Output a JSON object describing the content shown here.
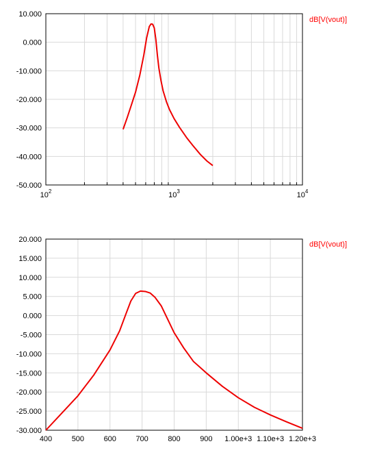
{
  "chart_data": [
    {
      "type": "line",
      "x_scale": "log",
      "xlim": [
        100,
        10000
      ],
      "ylim": [
        -50,
        10
      ],
      "x_ticks": [
        {
          "value": 100,
          "base": "10",
          "exp": "2"
        },
        {
          "value": 1000,
          "base": "10",
          "exp": "3"
        },
        {
          "value": 10000,
          "base": "10",
          "exp": "4"
        }
      ],
      "y_ticks": [
        {
          "value": 10,
          "label": "10.000"
        },
        {
          "value": 0,
          "label": "0.000"
        },
        {
          "value": -10,
          "label": "-10.000"
        },
        {
          "value": -20,
          "label": "-20.000"
        },
        {
          "value": -30,
          "label": "-30.000"
        },
        {
          "value": -40,
          "label": "-40.000"
        },
        {
          "value": -50,
          "label": "-50.000"
        }
      ],
      "grid": true,
      "color": "#ee0000",
      "series": [
        {
          "name": "dB[V(vout)]",
          "x": [
            400,
            430,
            460,
            500,
            540,
            580,
            610,
            640,
            660,
            680,
            700,
            720,
            740,
            760,
            790,
            820,
            870,
            920,
            1000,
            1100,
            1250,
            1400,
            1600,
            1800,
            2000
          ],
          "y": [
            -30.5,
            -26.5,
            -22.5,
            -17.5,
            -11.5,
            -4.5,
            1.5,
            5.5,
            6.4,
            6.3,
            5.0,
            1.0,
            -4.5,
            -9.0,
            -13.5,
            -17.0,
            -20.8,
            -23.6,
            -26.8,
            -29.8,
            -33.4,
            -36.2,
            -39.3,
            -41.6,
            -43.2
          ]
        }
      ]
    },
    {
      "type": "line",
      "x_scale": "linear",
      "xlim": [
        400,
        1200
      ],
      "ylim": [
        -30,
        20
      ],
      "x_ticks": [
        {
          "value": 400,
          "label": "400"
        },
        {
          "value": 500,
          "label": "500"
        },
        {
          "value": 600,
          "label": "600"
        },
        {
          "value": 700,
          "label": "700"
        },
        {
          "value": 800,
          "label": "800"
        },
        {
          "value": 900,
          "label": "900"
        },
        {
          "value": 1000,
          "label": "1.00e+3"
        },
        {
          "value": 1100,
          "label": "1.10e+3"
        },
        {
          "value": 1200,
          "label": "1.20e+3"
        }
      ],
      "y_ticks": [
        {
          "value": 20,
          "label": "20.000"
        },
        {
          "value": 15,
          "label": "15.000"
        },
        {
          "value": 10,
          "label": "10.000"
        },
        {
          "value": 5,
          "label": "5.000"
        },
        {
          "value": 0,
          "label": "0.000"
        },
        {
          "value": -5,
          "label": "-5.000"
        },
        {
          "value": -10,
          "label": "-10.000"
        },
        {
          "value": -15,
          "label": "-15.000"
        },
        {
          "value": -20,
          "label": "-20.000"
        },
        {
          "value": -25,
          "label": "-25.000"
        },
        {
          "value": -30,
          "label": "-30.000"
        }
      ],
      "grid": true,
      "color": "#ee0000",
      "series": [
        {
          "name": "dB[V(vout)]",
          "x": [
            400,
            450,
            500,
            550,
            600,
            630,
            650,
            665,
            680,
            695,
            710,
            725,
            740,
            760,
            780,
            800,
            830,
            860,
            900,
            950,
            1000,
            1050,
            1100,
            1150,
            1200
          ],
          "y": [
            -30.0,
            -25.5,
            -21.0,
            -15.5,
            -9.0,
            -4.0,
            0.5,
            3.8,
            5.8,
            6.4,
            6.3,
            5.9,
            4.8,
            2.5,
            -1.0,
            -4.5,
            -8.5,
            -12.0,
            -15.0,
            -18.5,
            -21.5,
            -24.0,
            -26.0,
            -27.8,
            -29.5
          ]
        }
      ]
    }
  ]
}
